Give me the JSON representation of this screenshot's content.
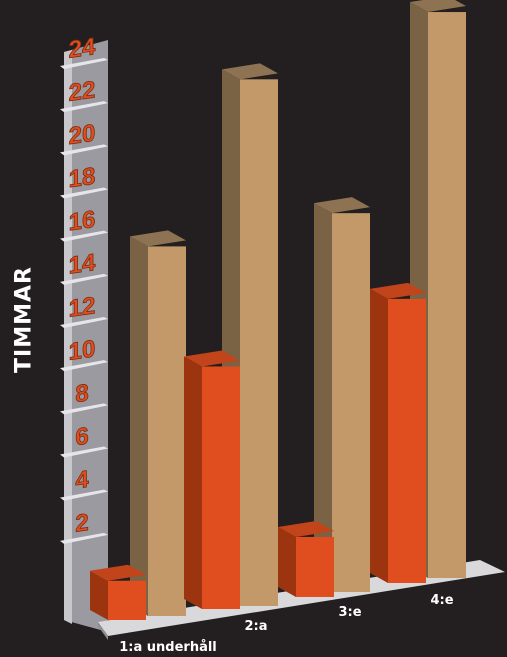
{
  "chart_data": {
    "type": "bar",
    "title": "",
    "xlabel": "",
    "ylabel": "TIMMAR",
    "ylim": [
      0,
      24
    ],
    "yticks": [
      "2",
      "4",
      "6",
      "8",
      "10",
      "12",
      "14",
      "16",
      "18",
      "20",
      "22",
      "24"
    ],
    "categories": [
      "1:a underhåll",
      "2:a",
      "3:e",
      "4:e"
    ],
    "series": [
      {
        "values": [
          1.7,
          10.5,
          2.6,
          12.3
        ]
      },
      {
        "values": [
          16.0,
          22.8,
          16.4,
          24.5
        ]
      }
    ],
    "colors": {
      "front_series": "#e04e1f",
      "back_series": "#c4996a",
      "background": "#231f20",
      "tick_text": "#e04e1f",
      "label_text": "#ffffff"
    },
    "grid": false,
    "legend": "none"
  }
}
